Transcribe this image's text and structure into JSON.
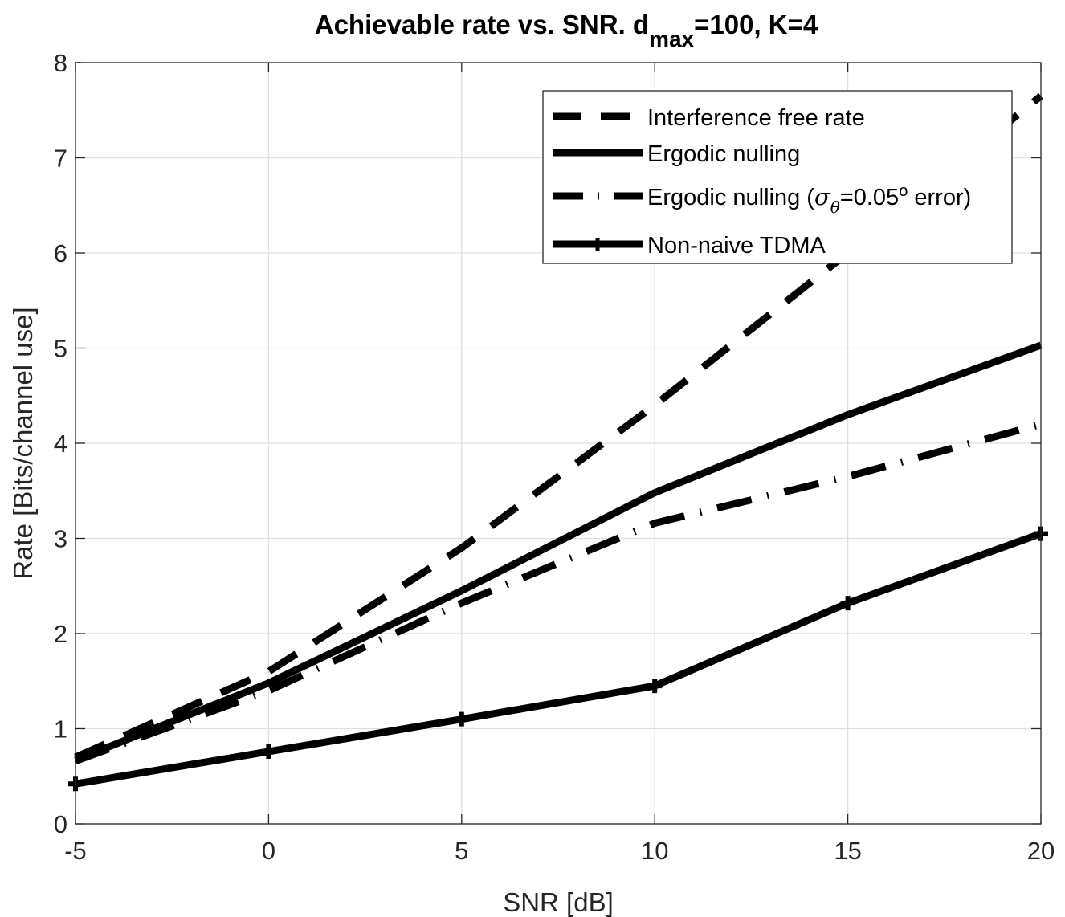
{
  "chart_data": {
    "type": "line",
    "title": {
      "prefix": "Achievable rate vs. SNR. d",
      "subscript": "max",
      "suffix": "=100, K=4"
    },
    "xlabel": "SNR [dB]",
    "ylabel": "Rate [Bits/channel use]",
    "xlim": [
      -5,
      20
    ],
    "ylim": [
      0,
      8
    ],
    "xticks": [
      -5,
      0,
      5,
      10,
      15,
      20
    ],
    "yticks": [
      0,
      1,
      2,
      3,
      4,
      5,
      6,
      7,
      8
    ],
    "grid": true,
    "legend_position": "top-right",
    "x": [
      -5,
      0,
      5,
      10,
      15,
      20
    ],
    "series": [
      {
        "name": "Interference free rate",
        "style": "dashed",
        "color": "#000000",
        "values": [
          0.7,
          1.6,
          2.9,
          4.4,
          6.0,
          7.65
        ]
      },
      {
        "name": "Ergodic nulling",
        "style": "solid",
        "color": "#000000",
        "values": [
          0.67,
          1.48,
          2.45,
          3.48,
          4.3,
          5.03
        ]
      },
      {
        "name_parts": {
          "prefix": "Ergodic nulling (",
          "sigma": "σ",
          "sub": "θ",
          "mid": "=0.05",
          "sup": "o",
          "suffix": " error)"
        },
        "style": "dashdot",
        "color": "#000000",
        "values": [
          0.66,
          1.4,
          2.32,
          3.16,
          3.65,
          4.2
        ]
      },
      {
        "name": "Non-naive TDMA",
        "style": "solid-marker",
        "marker": "plus",
        "color": "#000000",
        "values": [
          0.42,
          0.76,
          1.1,
          1.45,
          2.32,
          3.05
        ]
      }
    ]
  }
}
